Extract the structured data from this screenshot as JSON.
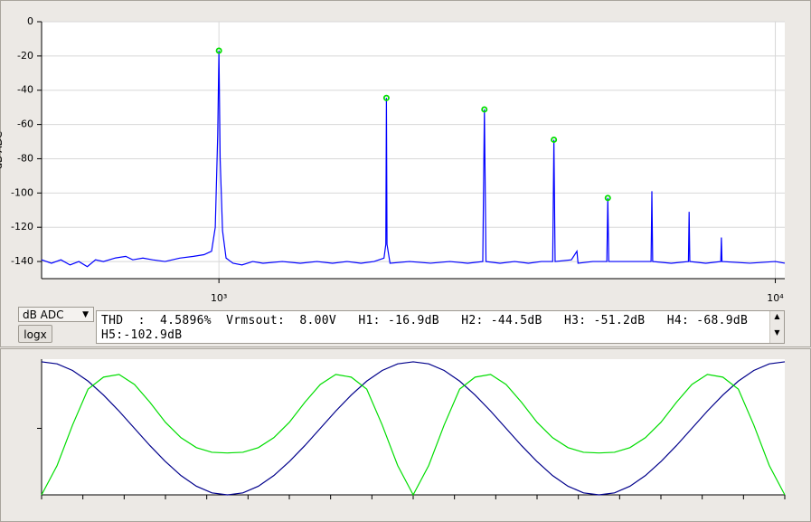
{
  "controls": {
    "unit_select": "dB ADC",
    "logx_button": "logx",
    "readout": [
      "THD  :  4.5896%  Vrmsout:  8.00V   H1: -16.9dB   H2: -44.5dB   H3: -51.2dB   H4: -68.9dB",
      "H5:-102.9dB"
    ]
  },
  "chart_data": [
    {
      "type": "line",
      "ylabel": "dB ADC",
      "log_x": true,
      "grid": true,
      "show_tick_labels": true,
      "xlim": [
        480,
        10400
      ],
      "ylim": [
        -150,
        0
      ],
      "xticks": [
        {
          "value": 1000,
          "label": "10³"
        },
        {
          "value": 10000,
          "label": "10⁴"
        }
      ],
      "yticks": [
        0,
        -20,
        -40,
        -60,
        -80,
        -100,
        -120,
        -140
      ],
      "series": [
        {
          "color": "#0000ff",
          "x": [
            480,
            500,
            520,
            540,
            560,
            580,
            600,
            620,
            650,
            680,
            700,
            730,
            760,
            800,
            850,
            900,
            940,
            970,
            985,
            995,
            1000,
            1005,
            1015,
            1030,
            1060,
            1100,
            1150,
            1200,
            1300,
            1400,
            1500,
            1600,
            1700,
            1800,
            1900,
            1980,
            1995,
            2000,
            2005,
            2030,
            2200,
            2400,
            2600,
            2800,
            2980,
            3000,
            3020,
            3200,
            3400,
            3600,
            3800,
            3980,
            4000,
            4020,
            4300,
            4400,
            4420,
            4700,
            4980,
            5000,
            5020,
            5500,
            5980,
            6000,
            6020,
            6500,
            6980,
            7000,
            7020,
            7500,
            7980,
            8000,
            8020,
            9000,
            10000,
            10400
          ],
          "values": [
            -139,
            -141,
            -139,
            -142,
            -140,
            -143,
            -139,
            -140,
            -138,
            -137,
            -139,
            -138,
            -139,
            -140,
            -138,
            -137,
            -136,
            -134,
            -120,
            -66,
            -16.9,
            -80,
            -122,
            -138,
            -141,
            -142,
            -140,
            -141,
            -140,
            -141,
            -140,
            -141,
            -140,
            -141,
            -140,
            -138,
            -130,
            -44.5,
            -130,
            -141,
            -140,
            -141,
            -140,
            -141,
            -140,
            -51.2,
            -140,
            -141,
            -140,
            -141,
            -140,
            -140,
            -68.9,
            -140,
            -139,
            -134,
            -141,
            -140,
            -140,
            -102.9,
            -140,
            -140,
            -140,
            -99,
            -140,
            -141,
            -140,
            -111,
            -140,
            -141,
            -140,
            -126,
            -140,
            -141,
            -140,
            -141
          ]
        },
        {
          "color": "#00dd00",
          "marker": "circle",
          "x": [
            1000,
            2000,
            3000,
            4000,
            5000
          ],
          "values": [
            -16.9,
            -44.5,
            -51.2,
            -68.9,
            -102.9
          ]
        }
      ]
    },
    {
      "type": "line",
      "log_x": false,
      "grid": false,
      "show_tick_labels": false,
      "xlim": [
        0,
        720
      ],
      "ylim": [
        -1,
        1.04
      ],
      "xticks": [
        0,
        40,
        80,
        120,
        160,
        200,
        240,
        280,
        320,
        360,
        400,
        440,
        480,
        520,
        560,
        600,
        640,
        680,
        720
      ],
      "yticks": [
        0
      ],
      "x": [
        0,
        15,
        30,
        45,
        60,
        75,
        90,
        105,
        120,
        135,
        150,
        165,
        180,
        195,
        210,
        225,
        240,
        255,
        270,
        285,
        300,
        315,
        330,
        345,
        360,
        375,
        390,
        405,
        420,
        435,
        450,
        465,
        480,
        495,
        510,
        525,
        540,
        555,
        570,
        585,
        600,
        615,
        630,
        645,
        660,
        675,
        690,
        705,
        720
      ],
      "series": [
        {
          "color": "#00008b",
          "values": [
            1,
            0.97,
            0.87,
            0.71,
            0.5,
            0.26,
            0,
            -0.26,
            -0.5,
            -0.71,
            -0.87,
            -0.97,
            -1,
            -0.97,
            -0.87,
            -0.71,
            -0.5,
            -0.26,
            0,
            0.26,
            0.5,
            0.71,
            0.87,
            0.97,
            1,
            0.97,
            0.87,
            0.71,
            0.5,
            0.26,
            0,
            -0.26,
            -0.5,
            -0.71,
            -0.87,
            -0.97,
            -1,
            -0.97,
            -0.87,
            -0.71,
            -0.5,
            -0.26,
            0,
            0.26,
            0.5,
            0.71,
            0.87,
            0.97,
            1
          ]
        },
        {
          "color": "#00dd00",
          "values": [
            -1,
            -0.56,
            0.05,
            0.59,
            0.77,
            0.81,
            0.66,
            0.39,
            0.09,
            -0.14,
            -0.29,
            -0.36,
            -0.37,
            -0.36,
            -0.29,
            -0.14,
            0.09,
            0.39,
            0.66,
            0.81,
            0.77,
            0.59,
            0.05,
            -0.56,
            -1,
            -0.56,
            0.05,
            0.59,
            0.77,
            0.81,
            0.66,
            0.39,
            0.09,
            -0.14,
            -0.29,
            -0.36,
            -0.37,
            -0.36,
            -0.29,
            -0.14,
            0.09,
            0.39,
            0.66,
            0.81,
            0.77,
            0.59,
            0.05,
            -0.56,
            -1
          ]
        }
      ]
    }
  ]
}
